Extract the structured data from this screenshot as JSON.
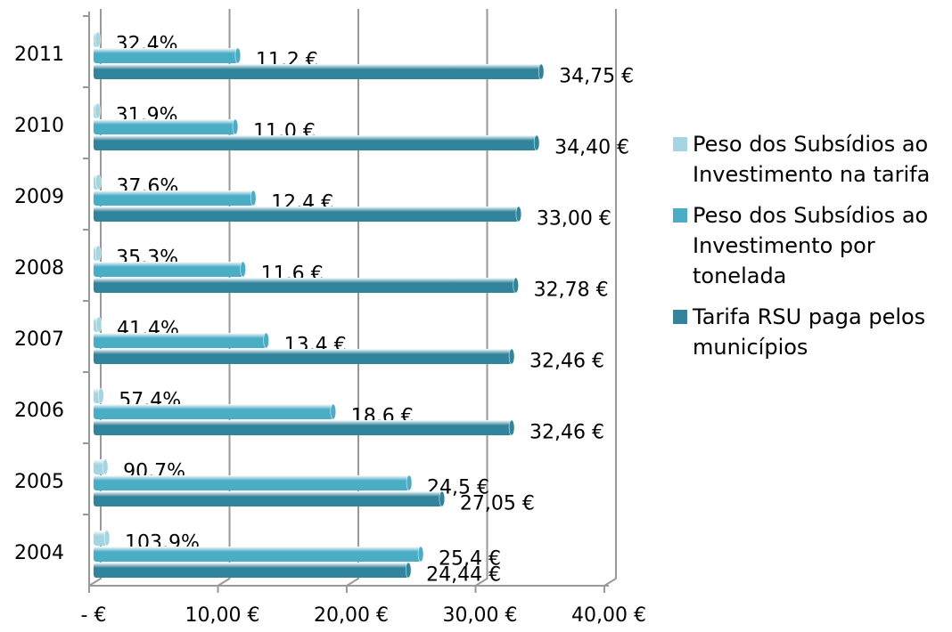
{
  "chart_data": {
    "type": "bar",
    "orientation": "horizontal",
    "categories": [
      "2004",
      "2005",
      "2006",
      "2007",
      "2008",
      "2009",
      "2010",
      "2011"
    ],
    "series": [
      {
        "name": "Peso dos Subsídios ao Investimento na tarifa",
        "color": "#a5d5e2",
        "values": [
          1.039,
          0.907,
          0.574,
          0.414,
          0.353,
          0.376,
          0.319,
          0.324
        ],
        "value_labels": [
          "103,9%",
          "90,7%",
          "57,4%",
          "41,4%",
          "35,3%",
          "37,6%",
          "31,9%",
          "32,4%"
        ]
      },
      {
        "name": "Peso dos Subsídios ao Investimento por tonelada",
        "color": "#4bacc6",
        "values": [
          25.4,
          24.5,
          18.6,
          13.4,
          11.6,
          12.4,
          11.0,
          11.2
        ],
        "value_labels": [
          "25,4 €",
          "24,5 €",
          "18,6 €",
          "13,4 €",
          "11,6 €",
          "12,4 €",
          "11,0 €",
          "11,2 €"
        ]
      },
      {
        "name": "Tarifa RSU paga pelos municípios",
        "color": "#31849b",
        "values": [
          24.44,
          27.05,
          32.46,
          32.46,
          32.78,
          33.0,
          34.4,
          34.75
        ],
        "value_labels": [
          "24,44 €",
          "27,05 €",
          "32,46 €",
          "32,46 €",
          "32,78 €",
          "33,00 €",
          "34,40 €",
          "34,75 €"
        ]
      }
    ],
    "xlim": [
      0,
      40
    ],
    "xticks": [
      {
        "value": 0,
        "label": "-  €"
      },
      {
        "value": 10,
        "label": "10,00 €"
      },
      {
        "value": 20,
        "label": "20,00 €"
      },
      {
        "value": 30,
        "label": "30,00 €"
      },
      {
        "value": 40,
        "label": "40,00 €"
      }
    ],
    "grid": true,
    "legend": "right"
  }
}
